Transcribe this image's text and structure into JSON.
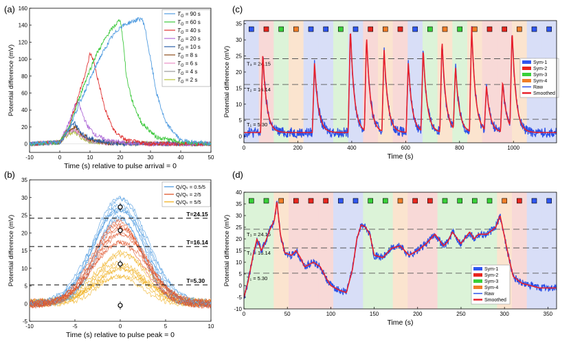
{
  "chart_data": [
    {
      "panel": "(a)",
      "type": "line",
      "xlabel": "Time (s) relative to pulse arrival = 0",
      "ylabel": "Potential difference (mV)",
      "xlim": [
        -10,
        50
      ],
      "ylim": [
        -10,
        160
      ],
      "xticks": [
        -10,
        0,
        10,
        20,
        30,
        40,
        50
      ],
      "yticks": [
        0,
        20,
        40,
        60,
        80,
        100,
        120,
        140,
        160
      ],
      "legend": "top-right",
      "series": [
        {
          "name": "T_G = 90 s",
          "label": "= 90 s",
          "color": "#4f9be0",
          "points": [
            [
              -10,
              0
            ],
            [
              0,
              2
            ],
            [
              3,
              18
            ],
            [
              8,
              60
            ],
            [
              13,
              100
            ],
            [
              17,
              125
            ],
            [
              20,
              138
            ],
            [
              23,
              143
            ],
            [
              27,
              148
            ],
            [
              28,
              140
            ],
            [
              30,
              100
            ],
            [
              32,
              60
            ],
            [
              35,
              25
            ],
            [
              40,
              4
            ],
            [
              50,
              0
            ]
          ]
        },
        {
          "name": "T_G = 60 s",
          "label": "= 60 s",
          "color": "#3cc83c",
          "points": [
            [
              -10,
              0
            ],
            [
              0,
              2
            ],
            [
              3,
              18
            ],
            [
              8,
              70
            ],
            [
              12,
              105
            ],
            [
              16,
              130
            ],
            [
              19,
              143
            ],
            [
              20,
              147
            ],
            [
              21,
              120
            ],
            [
              22,
              80
            ],
            [
              24,
              50
            ],
            [
              27,
              25
            ],
            [
              32,
              8
            ],
            [
              40,
              2
            ],
            [
              50,
              0
            ]
          ]
        },
        {
          "name": "T_G = 40 s",
          "label": "= 40 s",
          "color": "#e03030",
          "points": [
            [
              -10,
              0
            ],
            [
              0,
              2
            ],
            [
              3,
              20
            ],
            [
              6,
              55
            ],
            [
              9,
              90
            ],
            [
              10,
              107
            ],
            [
              11,
              100
            ],
            [
              13,
              70
            ],
            [
              15,
              40
            ],
            [
              18,
              15
            ],
            [
              22,
              4
            ],
            [
              30,
              0
            ],
            [
              50,
              0
            ]
          ]
        },
        {
          "name": "T_G = 20 s",
          "label": "= 20 s",
          "color": "#b06cd8",
          "points": [
            [
              -10,
              0
            ],
            [
              0,
              2
            ],
            [
              3,
              25
            ],
            [
              5,
              45
            ],
            [
              6,
              50
            ],
            [
              7,
              40
            ],
            [
              9,
              22
            ],
            [
              12,
              10
            ],
            [
              16,
              4
            ],
            [
              25,
              0
            ],
            [
              50,
              0
            ]
          ]
        },
        {
          "name": "T_G = 10 s",
          "label": "= 10 s",
          "color": "#2a5fa8",
          "points": [
            [
              -10,
              0
            ],
            [
              0,
              2
            ],
            [
              3,
              17
            ],
            [
              5,
              25
            ],
            [
              6,
              18
            ],
            [
              8,
              10
            ],
            [
              12,
              4
            ],
            [
              20,
              0
            ],
            [
              50,
              0
            ]
          ]
        },
        {
          "name": "T_G = 8 s",
          "label": "= 8 s",
          "color": "#8b4d1a",
          "points": [
            [
              -10,
              0
            ],
            [
              0,
              2
            ],
            [
              3,
              16
            ],
            [
              5,
              20
            ],
            [
              7,
              12
            ],
            [
              10,
              5
            ],
            [
              16,
              1
            ],
            [
              50,
              0
            ]
          ]
        },
        {
          "name": "T_G = 6 s",
          "label": "= 6 s",
          "color": "#e98fc6",
          "points": [
            [
              -10,
              0
            ],
            [
              0,
              2
            ],
            [
              3,
              15
            ],
            [
              5,
              18
            ],
            [
              7,
              10
            ],
            [
              10,
              4
            ],
            [
              16,
              1
            ],
            [
              50,
              0
            ]
          ]
        },
        {
          "name": "T_G = 4 s",
          "label": "= 4 s",
          "color": "#9a9a9a",
          "points": [
            [
              -10,
              0
            ],
            [
              0,
              2
            ],
            [
              3,
              13
            ],
            [
              5,
              16
            ],
            [
              7,
              9
            ],
            [
              10,
              3
            ],
            [
              16,
              1
            ],
            [
              50,
              0
            ]
          ]
        },
        {
          "name": "T_G = 2 s",
          "label": "= 2 s",
          "color": "#b8c43a",
          "points": [
            [
              -10,
              0
            ],
            [
              0,
              2
            ],
            [
              3,
              12
            ],
            [
              5,
              14
            ],
            [
              7,
              8
            ],
            [
              10,
              3
            ],
            [
              16,
              1
            ],
            [
              50,
              0
            ]
          ]
        }
      ]
    },
    {
      "panel": "(b)",
      "type": "line",
      "xlabel": "Time (s) relative to pulse peak = 0",
      "ylabel": "Potential difference (mV)",
      "xlim": [
        -10,
        10
      ],
      "ylim": [
        -5,
        35
      ],
      "xticks": [
        -10,
        -5,
        0,
        5,
        10
      ],
      "yticks": [
        -5,
        0,
        5,
        10,
        15,
        20,
        25,
        30,
        35
      ],
      "legend": "top-right",
      "series": [
        {
          "name": "Q_i/Q_s = 0.5/5",
          "label": "Qᵢ/Qₛ = 0.5/5",
          "color": "#4f9be0",
          "peaks": [
            25,
            26,
            27,
            28,
            29,
            30,
            24,
            26.5
          ]
        },
        {
          "name": "Q_i/Q_s = 2/5",
          "label": "Qᵢ/Qₛ = 2/5",
          "color": "#e0552a",
          "peaks": [
            17,
            19,
            20,
            21,
            22,
            23,
            24,
            18
          ]
        },
        {
          "name": "Q_i/Q_s = 5/5",
          "label": "Qᵢ/Qₛ = 5/5",
          "color": "#f0b020",
          "peaks": [
            7,
            8,
            9,
            10,
            11,
            12,
            13,
            14
          ]
        }
      ],
      "markers": [
        {
          "x": 0,
          "y": 27.3
        },
        {
          "x": 0,
          "y": 20.7
        },
        {
          "x": 0,
          "y": 11.2
        },
        {
          "x": 0,
          "y": -0.5
        }
      ],
      "thresholds": [
        {
          "value": 24.15,
          "label": "T=24.15"
        },
        {
          "value": 16.14,
          "label": "T=16.14"
        },
        {
          "value": 5.3,
          "label": "T=5.30"
        }
      ]
    },
    {
      "panel": "(c)",
      "type": "line",
      "xlabel": "Time (s)",
      "ylabel": "Potential difference (mV)",
      "xlim": [
        0,
        1160
      ],
      "ylim": [
        -2,
        36
      ],
      "xticks": [
        0,
        200,
        400,
        600,
        800,
        1000
      ],
      "yticks": [
        0,
        5,
        10,
        15,
        20,
        25,
        30,
        35
      ],
      "legend": "right",
      "thresholds": [
        {
          "value": 24.15,
          "label": "T₃ = 24.15"
        },
        {
          "value": 16.14,
          "label": "T₂ = 16.14"
        },
        {
          "value": 5.3,
          "label": "T₁ = 5.30"
        }
      ],
      "symbols": [
        "Sym-1",
        "Sym-2",
        "Sym-3",
        "Sym-4",
        "Sym-1",
        "Sym-1",
        "Sym-3",
        "Sym-1",
        "Sym-2",
        "Sym-4",
        "Sym-2",
        "Sym-1",
        "Sym-3",
        "Sym-4",
        "Sym-3",
        "Sym-4",
        "Sym-2",
        "Sym-2",
        "Sym-4",
        "Sym-1",
        "Sym-1"
      ],
      "peaks": [
        [
          70,
          25
        ],
        [
          262,
          22
        ],
        [
          395,
          33
        ],
        [
          455,
          30
        ],
        [
          520,
          26
        ],
        [
          610,
          22
        ],
        [
          665,
          26
        ],
        [
          735,
          29
        ],
        [
          785,
          20
        ],
        [
          845,
          33
        ],
        [
          900,
          14
        ],
        [
          960,
          16
        ],
        [
          995,
          31
        ]
      ],
      "legend_entries": [
        "Sym-1",
        "Sym-2",
        "Sym-3",
        "Sym-4",
        "Raw",
        "Smoothed"
      ]
    },
    {
      "panel": "(d)",
      "type": "line",
      "xlabel": "Time (s)",
      "ylabel": "Potential difference (mV)",
      "xlim": [
        0,
        360
      ],
      "ylim": [
        -10,
        40
      ],
      "xticks": [
        0,
        50,
        100,
        150,
        200,
        250,
        300,
        350
      ],
      "yticks": [
        -10,
        -5,
        0,
        5,
        10,
        15,
        20,
        25,
        30,
        35,
        40
      ],
      "legend": "bottom-right",
      "thresholds": [
        {
          "value": 24.15,
          "label": "T₃ = 24.15"
        },
        {
          "value": 16.14,
          "label": "T₂ = 16.14"
        },
        {
          "value": 5.3,
          "label": "T₁ = 5.30"
        }
      ],
      "symbols": [
        "Sym-3",
        "Sym-3",
        "Sym-4",
        "Sym-2",
        "Sym-2",
        "Sym-2",
        "Sym-1",
        "Sym-1",
        "Sym-3",
        "Sym-3",
        "Sym-4",
        "Sym-2",
        "Sym-2",
        "Sym-3",
        "Sym-3",
        "Sym-3",
        "Sym-3",
        "Sym-4",
        "Sym-2",
        "Sym-1",
        "Sym-1"
      ],
      "points": [
        [
          0,
          -5
        ],
        [
          5,
          2
        ],
        [
          10,
          12
        ],
        [
          15,
          20
        ],
        [
          20,
          15
        ],
        [
          25,
          19
        ],
        [
          30,
          24
        ],
        [
          35,
          28
        ],
        [
          38,
          36
        ],
        [
          42,
          22
        ],
        [
          47,
          14
        ],
        [
          55,
          13
        ],
        [
          60,
          15
        ],
        [
          65,
          12
        ],
        [
          70,
          8
        ],
        [
          80,
          10
        ],
        [
          88,
          8
        ],
        [
          95,
          3
        ],
        [
          100,
          0
        ],
        [
          110,
          -2
        ],
        [
          118,
          -3
        ],
        [
          125,
          7
        ],
        [
          130,
          20
        ],
        [
          135,
          26
        ],
        [
          140,
          25
        ],
        [
          145,
          22
        ],
        [
          150,
          13
        ],
        [
          160,
          12
        ],
        [
          170,
          16
        ],
        [
          180,
          17
        ],
        [
          190,
          13
        ],
        [
          200,
          15
        ],
        [
          210,
          18
        ],
        [
          220,
          22
        ],
        [
          230,
          17
        ],
        [
          235,
          19
        ],
        [
          240,
          23
        ],
        [
          250,
          18
        ],
        [
          260,
          23
        ],
        [
          265,
          20
        ],
        [
          270,
          22
        ],
        [
          280,
          22
        ],
        [
          290,
          25
        ],
        [
          295,
          30
        ],
        [
          300,
          21
        ],
        [
          305,
          12
        ],
        [
          310,
          4
        ],
        [
          320,
          1
        ],
        [
          330,
          0
        ],
        [
          340,
          -1
        ],
        [
          350,
          -1
        ],
        [
          360,
          -1
        ]
      ],
      "legend_entries": [
        "Sym-1",
        "Sym-2",
        "Sym-3",
        "Sym-4",
        "Raw",
        "Smoothed"
      ]
    }
  ],
  "panel_labels": {
    "a": "(a)",
    "b": "(b)",
    "c": "(c)",
    "d": "(d)"
  },
  "legend_prefix_a": "T",
  "legend_prefix_a_sub": "G",
  "colors": {
    "sym1": "#2f56f0",
    "sym2": "#e8261e",
    "sym3": "#38d038",
    "sym4": "#f07e28",
    "raw": "#2a50e8",
    "smoothed": "#e8202a",
    "bg1": "#d8def7",
    "bg2": "#f8d9d7",
    "bg3": "#dcf3d8",
    "bg4": "#fbe4cf"
  }
}
